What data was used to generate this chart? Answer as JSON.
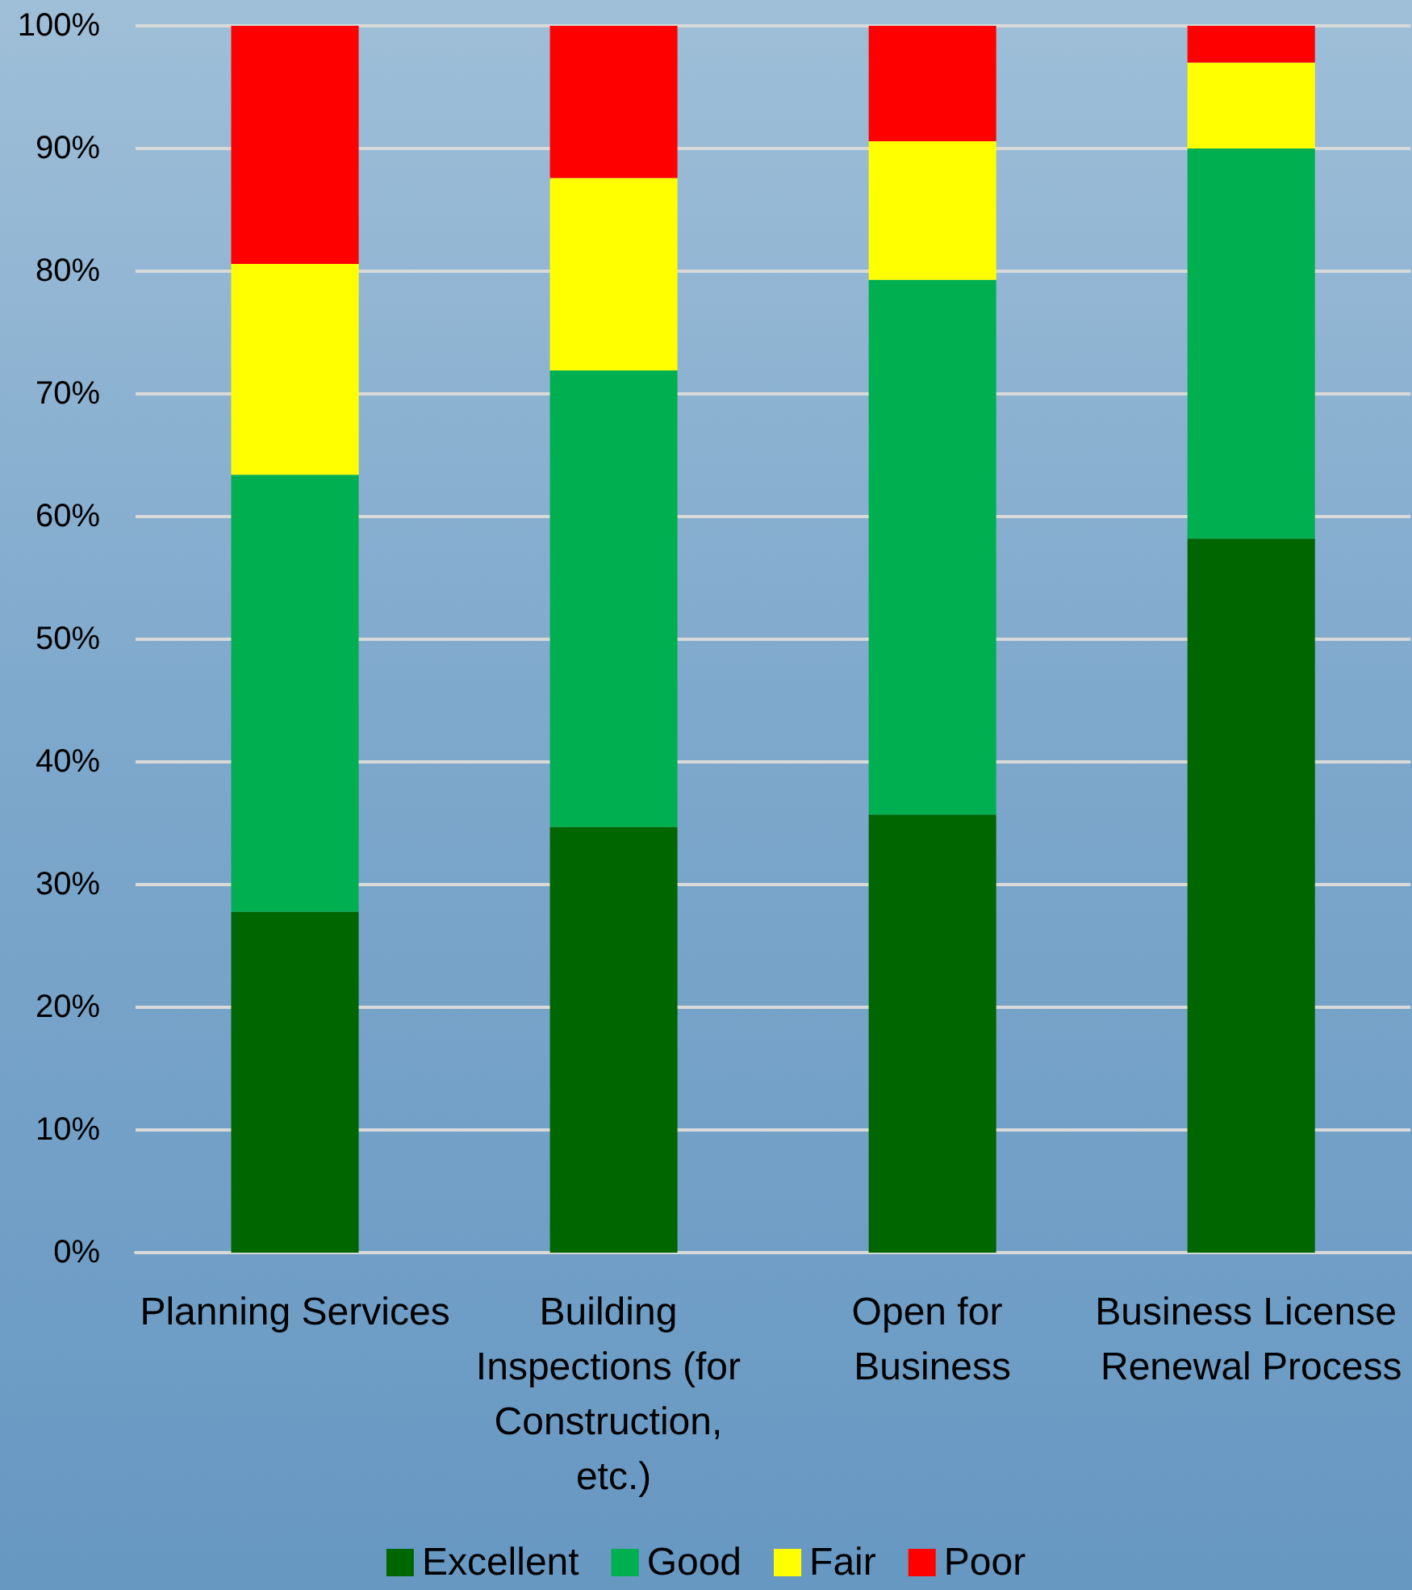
{
  "chart_data": {
    "type": "bar",
    "stacked": true,
    "categories": [
      "Planning Services",
      "Building Inspections (for Construction, etc.)",
      "Open for Business",
      "Business License Renewal Process"
    ],
    "series": [
      {
        "name": "Excellent",
        "color": "#006600",
        "values": [
          27.8,
          34.7,
          35.7,
          58.2
        ]
      },
      {
        "name": "Good",
        "color": "#00b050",
        "values": [
          35.6,
          37.2,
          43.6,
          31.8
        ]
      },
      {
        "name": "Fair",
        "color": "#ffff00",
        "values": [
          17.2,
          15.7,
          11.3,
          7.0
        ]
      },
      {
        "name": "Poor",
        "color": "#ff0000",
        "values": [
          19.4,
          12.4,
          9.4,
          3.0
        ]
      }
    ],
    "ylim": [
      0,
      100
    ],
    "yticks": [
      {
        "value": 0,
        "label": "0%"
      },
      {
        "value": 10,
        "label": "10%"
      },
      {
        "value": 20,
        "label": "20%"
      },
      {
        "value": 30,
        "label": "30%"
      },
      {
        "value": 40,
        "label": "40%"
      },
      {
        "value": 50,
        "label": "50%"
      },
      {
        "value": 60,
        "label": "60%"
      },
      {
        "value": 70,
        "label": "70%"
      },
      {
        "value": 80,
        "label": "80%"
      },
      {
        "value": 90,
        "label": "90%"
      },
      {
        "value": 100,
        "label": "100%"
      }
    ],
    "grid": "y",
    "legend": "bottom"
  }
}
